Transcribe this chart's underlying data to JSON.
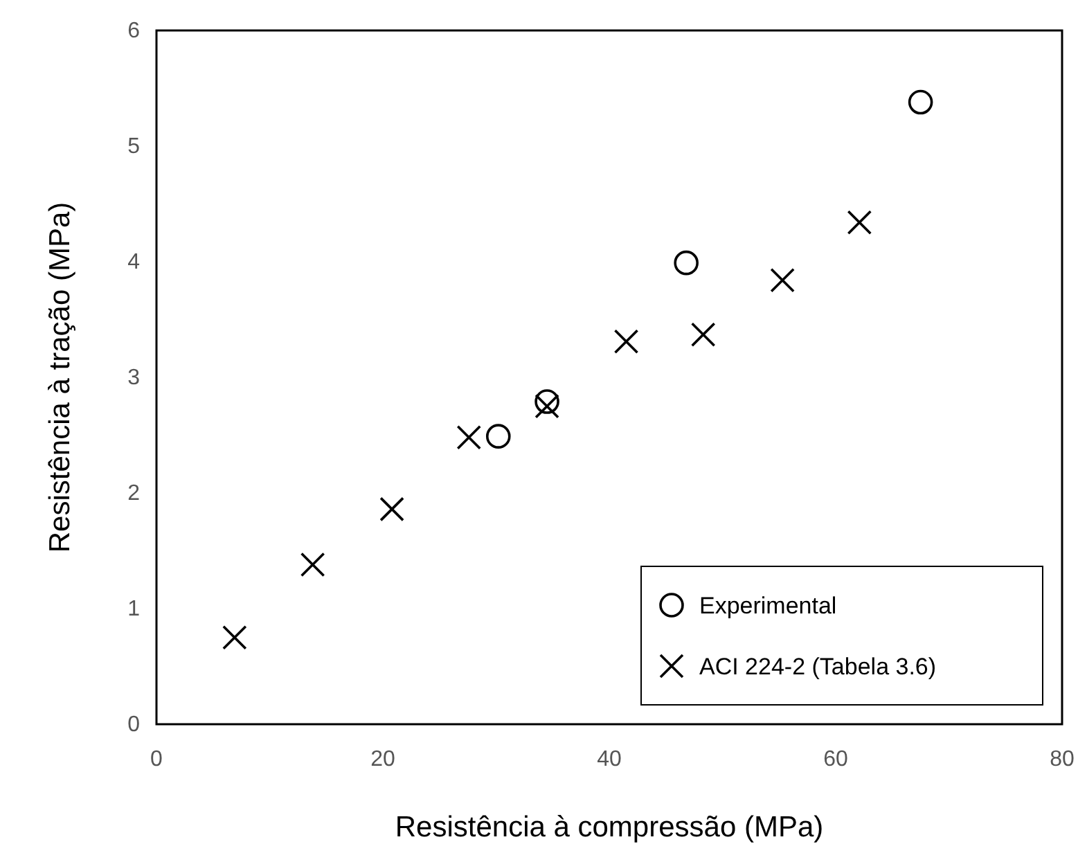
{
  "chart_data": {
    "type": "scatter",
    "xlabel": "Resistência à compressão (MPa)",
    "ylabel": "Resistência à tração (MPa)",
    "xlim": [
      0,
      80
    ],
    "xticks": [
      0,
      20,
      40,
      60,
      80
    ],
    "ylim": [
      0,
      6
    ],
    "yticks": [
      0,
      1,
      2,
      3,
      4,
      5,
      6
    ],
    "legend": "bottom right",
    "series": [
      {
        "name": "Experimental",
        "color": "#000000",
        "marker": "circle",
        "x": [
          67.5,
          46.8,
          34.5,
          30.2
        ],
        "values": [
          5.38,
          3.99,
          2.79,
          2.49
        ]
      },
      {
        "name": "ACI 224-2 (Tabela 3.6)",
        "color": "#000000",
        "marker": "cross",
        "x": [
          6.9,
          13.8,
          20.8,
          27.6,
          34.5,
          41.5,
          48.3,
          55.3,
          62.1
        ],
        "values": [
          0.75,
          1.38,
          1.86,
          2.48,
          2.75,
          3.31,
          3.37,
          3.84,
          4.34
        ]
      }
    ]
  }
}
